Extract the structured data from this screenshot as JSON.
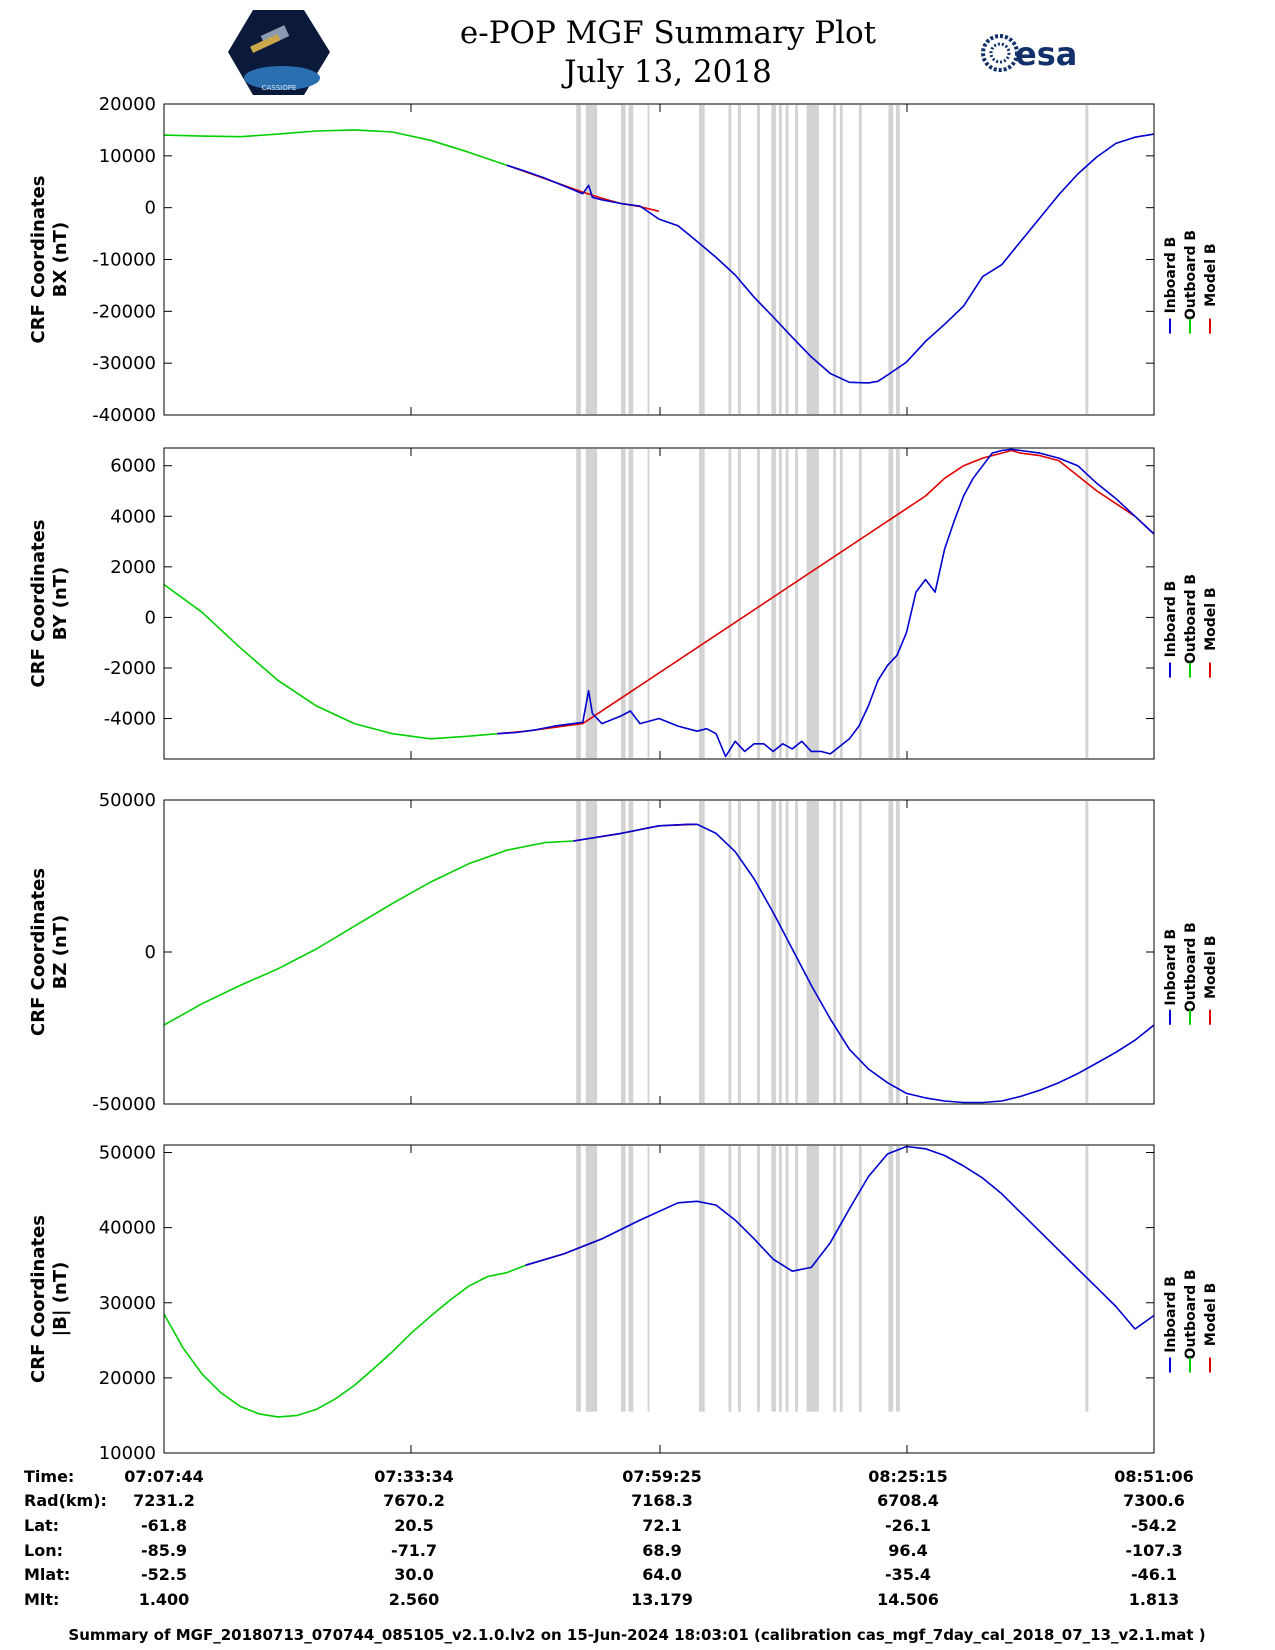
{
  "header": {
    "title": "e-POP MGF Summary Plot",
    "date": "July 13, 2018",
    "left_logo": {
      "icon": "cassiope-satellite-logo",
      "text": "CASSIOPE"
    },
    "right_logo": {
      "icon": "esa-logo",
      "text": "esa"
    }
  },
  "legend": {
    "labels": [
      "Inboard B",
      "Outboard B",
      "Model B"
    ],
    "colors": [
      "#0000d0",
      "#00d000",
      "#e00000"
    ]
  },
  "chart_data": [
    {
      "type": "line",
      "ylabel": [
        "CRF Coordinates",
        "BX (nT)"
      ],
      "ylim": [
        -40000,
        20000
      ],
      "yticks": [
        20000,
        10000,
        0,
        -10000,
        -20000,
        -30000,
        -40000
      ],
      "xlim": [
        0,
        104
      ],
      "series": [
        {
          "name": "Outboard B",
          "color": "#00d000",
          "x": [
            0,
            4,
            8,
            12,
            16,
            20,
            24,
            28,
            32,
            36
          ],
          "y": [
            14000,
            13800,
            13700,
            14200,
            14800,
            15000,
            14600,
            13000,
            10700,
            8200
          ]
        },
        {
          "name": "Model B",
          "color": "#e00000",
          "x": [
            36,
            40,
            44,
            46,
            48,
            50,
            52
          ],
          "y": [
            8200,
            5600,
            3000,
            1800,
            800,
            200,
            -700
          ]
        },
        {
          "name": "Inboard B",
          "color": "#0000d0",
          "x": [
            36,
            38,
            40,
            42,
            44,
            44.6,
            45,
            46,
            48,
            50,
            52,
            54,
            56,
            58,
            60,
            62,
            64,
            66,
            68,
            70,
            72,
            74,
            75,
            76,
            78,
            80,
            82,
            84,
            86,
            88,
            90,
            92,
            94,
            96,
            98,
            100,
            102,
            104
          ],
          "y": [
            8200,
            7000,
            5700,
            4200,
            2700,
            4300,
            2000,
            1500,
            800,
            300,
            -2200,
            -3500,
            -6500,
            -9600,
            -13000,
            -17300,
            -21100,
            -25000,
            -28800,
            -32000,
            -33700,
            -33800,
            -33500,
            -32300,
            -29800,
            -25800,
            -22500,
            -19000,
            -13300,
            -11000,
            -6500,
            -2000,
            2500,
            6500,
            9800,
            12400,
            13600,
            14200
          ]
        }
      ]
    },
    {
      "type": "line",
      "ylabel": [
        "CRF Coordinates",
        "BY (nT)"
      ],
      "ylim": [
        -5600,
        6700
      ],
      "yticks": [
        6000,
        4000,
        2000,
        0,
        -2000,
        -4000
      ],
      "xlim": [
        0,
        104
      ],
      "series": [
        {
          "name": "Outboard B",
          "color": "#00d000",
          "x": [
            0,
            4,
            8,
            12,
            16,
            20,
            24,
            28,
            32,
            35
          ],
          "y": [
            1300,
            200,
            -1200,
            -2500,
            -3500,
            -4200,
            -4600,
            -4800,
            -4700,
            -4600
          ]
        },
        {
          "name": "Model B",
          "color": "#e00000",
          "x": [
            35,
            38,
            40,
            42,
            44,
            80,
            82,
            84,
            86,
            88,
            89,
            90,
            92,
            94,
            96,
            98,
            100,
            102,
            104
          ],
          "y": [
            -4600,
            -4500,
            -4400,
            -4300,
            -4200,
            4800,
            5500,
            6000,
            6300,
            6500,
            6600,
            6500,
            6400,
            6200,
            5600,
            5000,
            4500,
            4000,
            3300
          ]
        },
        {
          "name": "Inboard B",
          "color": "#0000d0",
          "x": [
            35,
            37,
            39,
            41,
            43,
            44,
            44.6,
            45,
            46,
            48,
            49,
            50,
            51,
            52,
            54,
            56,
            57,
            58,
            59,
            60,
            61,
            62,
            63,
            64,
            65,
            66,
            67,
            68,
            69,
            70,
            72,
            73,
            74,
            75,
            76,
            77,
            78,
            79,
            80,
            81,
            82,
            83,
            84,
            85,
            86,
            87,
            88,
            89,
            90,
            92,
            94,
            96,
            98,
            100,
            102,
            104
          ],
          "y": [
            -4600,
            -4550,
            -4450,
            -4300,
            -4200,
            -4150,
            -2900,
            -3800,
            -4200,
            -3900,
            -3700,
            -4200,
            -4100,
            -4000,
            -4300,
            -4500,
            -4400,
            -4600,
            -5500,
            -4900,
            -5300,
            -5000,
            -5000,
            -5300,
            -5000,
            -5200,
            -4900,
            -5300,
            -5300,
            -5400,
            -4800,
            -4300,
            -3500,
            -2500,
            -1900,
            -1500,
            -600,
            1000,
            1500,
            1000,
            2700,
            3800,
            4800,
            5500,
            6000,
            6500,
            6600,
            6650,
            6600,
            6500,
            6300,
            6000,
            5300,
            4700,
            4000,
            3300
          ]
        }
      ]
    },
    {
      "type": "line",
      "ylabel": [
        "CRF Coordinates",
        "BZ (nT)"
      ],
      "ylim": [
        -50000,
        50000
      ],
      "yticks": [
        50000,
        0,
        -50000
      ],
      "xlim": [
        0,
        104
      ],
      "series": [
        {
          "name": "Outboard B",
          "color": "#00d000",
          "x": [
            0,
            4,
            8,
            12,
            16,
            20,
            24,
            28,
            32,
            36,
            40,
            43
          ],
          "y": [
            -24000,
            -17000,
            -11000,
            -5500,
            1000,
            8500,
            16000,
            23000,
            29000,
            33500,
            36000,
            36500
          ]
        },
        {
          "name": "Model B",
          "color": "#e00000",
          "x": [
            43,
            48,
            52,
            56
          ],
          "y": [
            36500,
            39000,
            41500,
            42000
          ]
        },
        {
          "name": "Inboard B",
          "color": "#0000d0",
          "x": [
            43,
            48,
            52,
            55,
            56,
            58,
            60,
            62,
            64,
            66,
            68,
            70,
            72,
            74,
            76,
            78,
            80,
            82,
            84,
            86,
            88,
            90,
            92,
            94,
            96,
            98,
            100,
            102,
            104
          ],
          "y": [
            36500,
            39000,
            41500,
            42000,
            42000,
            39000,
            33000,
            24000,
            13000,
            1000,
            -11000,
            -22000,
            -32000,
            -38500,
            -43000,
            -46500,
            -48000,
            -49000,
            -49500,
            -49500,
            -49000,
            -47500,
            -45500,
            -43000,
            -40000,
            -36500,
            -33000,
            -29000,
            -24000
          ]
        }
      ]
    },
    {
      "type": "line",
      "ylabel": [
        "CRF Coordinates",
        "|B| (nT)"
      ],
      "ylim": [
        10000,
        51000
      ],
      "yticks": [
        50000,
        40000,
        30000,
        20000,
        10000
      ],
      "xlim": [
        0,
        104
      ],
      "series": [
        {
          "name": "Outboard B",
          "color": "#00d000",
          "x": [
            0,
            2,
            4,
            6,
            8,
            10,
            12,
            14,
            16,
            18,
            20,
            22,
            24,
            26,
            28,
            30,
            32,
            34,
            36,
            38
          ],
          "y": [
            28500,
            24000,
            20500,
            18000,
            16200,
            15200,
            14800,
            15000,
            15800,
            17200,
            19000,
            21200,
            23500,
            26000,
            28200,
            30300,
            32200,
            33500,
            34000,
            35000
          ]
        },
        {
          "name": "Model B",
          "color": "#e00000",
          "x": [
            38,
            42,
            46
          ],
          "y": [
            35000,
            36500,
            38500
          ]
        },
        {
          "name": "Inboard B",
          "color": "#0000d0",
          "x": [
            38,
            42,
            46,
            50,
            54,
            56,
            58,
            60,
            62,
            64,
            66,
            68,
            70,
            72,
            74,
            76,
            78,
            80,
            82,
            84,
            86,
            88,
            90,
            92,
            94,
            96,
            98,
            100,
            102,
            104
          ],
          "y": [
            35000,
            36500,
            38500,
            41000,
            43300,
            43500,
            43000,
            41000,
            38500,
            35800,
            34200,
            34700,
            38000,
            42500,
            46800,
            49800,
            50800,
            50500,
            49600,
            48200,
            46600,
            44500,
            42000,
            39500,
            37000,
            34500,
            32000,
            29500,
            26500,
            28300
          ]
        }
      ]
    }
  ],
  "x_annotation": {
    "row_labels": [
      "Time:",
      "Rad(km):",
      "Lat:",
      "Lon:",
      "Mlat:",
      "Mlt:"
    ],
    "columns": [
      {
        "values": [
          "07:07:44",
          "7231.2",
          "-61.8",
          "-85.9",
          "-52.5",
          "1.400"
        ]
      },
      {
        "values": [
          "07:33:34",
          "7670.2",
          "20.5",
          "-71.7",
          "30.0",
          "2.560"
        ]
      },
      {
        "values": [
          "07:59:25",
          "7168.3",
          "72.1",
          "68.9",
          "64.0",
          "13.179"
        ]
      },
      {
        "values": [
          "08:25:15",
          "6708.4",
          "-26.1",
          "96.4",
          "-35.4",
          "14.506"
        ]
      },
      {
        "values": [
          "08:51:06",
          "7300.6",
          "-54.2",
          "-107.3",
          "-46.1",
          "1.813"
        ]
      }
    ]
  },
  "footer": "Summary of MGF_20180713_070744_085105_v2.1.0.lv2 on 15-Jun-2024 18:03:01 (calibration cas_mgf_7day_cal_2018_07_13_v2.1.mat )",
  "gray_bands": [
    [
      43.3,
      43.8
    ],
    [
      44.3,
      45.5
    ],
    [
      48.0,
      48.5
    ],
    [
      48.8,
      49.3
    ],
    [
      50.8,
      51.0
    ],
    [
      56.2,
      56.8
    ],
    [
      59.3,
      59.6
    ],
    [
      60.3,
      60.6
    ],
    [
      62.3,
      62.6
    ],
    [
      63.8,
      64.3
    ],
    [
      64.6,
      64.9
    ],
    [
      65.3,
      65.6
    ],
    [
      66.3,
      66.6
    ],
    [
      67.5,
      68.8
    ],
    [
      70.3,
      70.6
    ],
    [
      71.0,
      71.3
    ],
    [
      73.0,
      73.3
    ],
    [
      76.1,
      76.6
    ],
    [
      76.9,
      77.3
    ],
    [
      96.8,
      97.1
    ]
  ],
  "gray_color": "#d3d3d3"
}
